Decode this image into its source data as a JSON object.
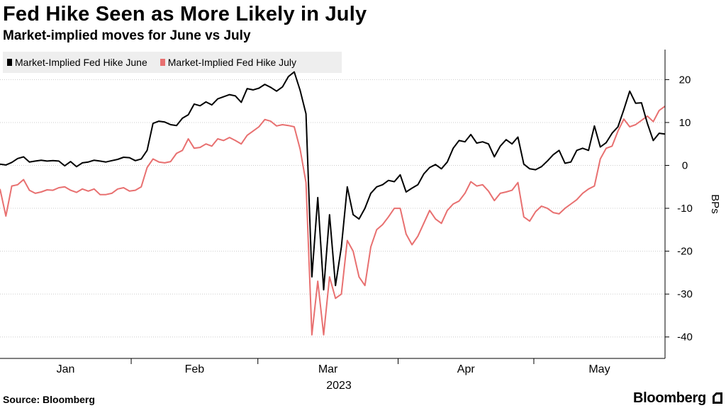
{
  "title": "Fed Hike Seen as More Likely in July",
  "subtitle": "Market-implied moves for June vs July",
  "source": "Source:  Bloomberg",
  "brand": "Bloomberg",
  "colors": {
    "june": "#000000",
    "july": "#e87070",
    "axis": "#000000",
    "grid": "#cccccc"
  },
  "chart_data": {
    "type": "line",
    "title": "Fed Hike Seen as More Likely in July",
    "subtitle": "Market-implied moves for June vs July",
    "xlabel": "2023",
    "ylabel": "BPs",
    "ylim": [
      -45,
      27
    ],
    "yticks": [
      20,
      10,
      0,
      -10,
      -20,
      -30,
      -40
    ],
    "x_month_labels": [
      "Jan",
      "Feb",
      "Mar",
      "Apr",
      "May"
    ],
    "x_year_label": "2023",
    "x_start": "2023-01-03",
    "x_end": "2023-05-30",
    "legend": [
      "Market-Implied Fed Hike June",
      "Market-Implied Fed Hike July"
    ],
    "grid": true,
    "series": [
      {
        "name": "Market-Implied Fed Hike June",
        "color": "#000000",
        "values": [
          0.3,
          0.1,
          0.7,
          1.6,
          2.0,
          0.8,
          1.0,
          1.2,
          1.0,
          1.1,
          1.0,
          -0.1,
          0.9,
          -0.3,
          0.6,
          0.8,
          1.2,
          1.0,
          0.8,
          1.1,
          1.4,
          1.9,
          1.8,
          1.1,
          1.5,
          3.5,
          9.8,
          10.3,
          10.1,
          9.5,
          9.3,
          11.0,
          11.8,
          14.3,
          13.9,
          14.8,
          14.1,
          15.5,
          16.0,
          16.5,
          16.2,
          14.7,
          17.9,
          17.6,
          18.0,
          18.9,
          18.2,
          17.3,
          18.3,
          20.7,
          21.8,
          17.5,
          12.0,
          -26.0,
          -7.5,
          -29.0,
          -11.5,
          -28.0,
          -19.0,
          -5.0,
          -11.5,
          -12.5,
          -10.0,
          -6.5,
          -5.0,
          -4.5,
          -3.5,
          -3.8,
          -2.2,
          -6.2,
          -5.3,
          -4.5,
          -2.0,
          -0.5,
          0.2,
          -0.8,
          0.8,
          4.0,
          5.8,
          5.5,
          7.2,
          5.2,
          5.5,
          5.0,
          2.0,
          4.5,
          6.0,
          5.0,
          6.6,
          0.3,
          -0.8,
          -1.0,
          -0.3,
          1.0,
          2.5,
          3.5,
          0.5,
          0.8,
          3.5,
          4.0,
          3.5,
          9.2,
          4.3,
          5.3,
          7.5,
          9.0,
          13.0,
          17.3,
          14.5,
          14.6,
          9.8,
          5.8,
          7.5,
          7.3
        ]
      },
      {
        "name": "Market-Implied Fed Hike July",
        "color": "#e87070",
        "values": [
          -5.5,
          -11.8,
          -4.8,
          -4.5,
          -3.3,
          -5.8,
          -6.5,
          -6.2,
          -5.7,
          -5.8,
          -5.2,
          -5.0,
          -5.8,
          -6.3,
          -5.5,
          -6.0,
          -5.5,
          -6.8,
          -6.8,
          -6.5,
          -5.5,
          -5.2,
          -6.0,
          -5.8,
          -5.0,
          -0.5,
          1.5,
          0.8,
          0.6,
          0.9,
          2.8,
          3.5,
          6.2,
          4.0,
          4.2,
          5.0,
          4.5,
          6.2,
          5.8,
          6.5,
          5.8,
          5.0,
          7.0,
          8.0,
          9.0,
          10.7,
          10.3,
          9.2,
          9.5,
          9.3,
          9.0,
          3.8,
          -4.0,
          -39.5,
          -27.0,
          -39.5,
          -26.0,
          -31.0,
          -30.0,
          -17.5,
          -20.0,
          -26.0,
          -28.0,
          -19.0,
          -15.0,
          -13.8,
          -12.0,
          -10.0,
          -10.0,
          -16.0,
          -18.5,
          -16.5,
          -13.5,
          -10.5,
          -12.5,
          -13.5,
          -10.5,
          -9.0,
          -8.3,
          -6.5,
          -3.8,
          -4.8,
          -4.5,
          -6.0,
          -8.2,
          -6.5,
          -6.2,
          -5.8,
          -4.0,
          -12.0,
          -13.0,
          -10.8,
          -9.5,
          -10.0,
          -11.0,
          -11.3,
          -10.0,
          -9.0,
          -8.0,
          -6.5,
          -5.5,
          -4.8,
          1.5,
          4.0,
          4.5,
          8.0,
          10.8,
          9.0,
          9.5,
          10.5,
          11.5,
          10.2,
          12.8,
          13.8
        ]
      }
    ]
  }
}
